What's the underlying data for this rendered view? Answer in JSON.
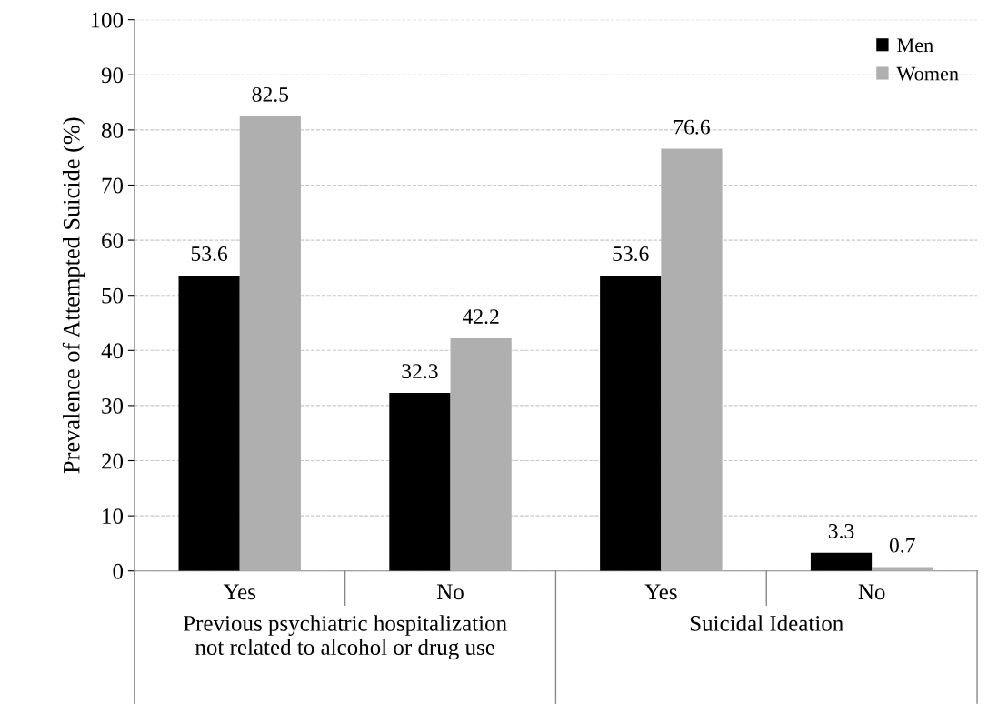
{
  "chart_data": {
    "type": "bar",
    "ylabel": "Prevalence of Attempted Suicide (%)",
    "categories": [
      "Yes",
      "No",
      "Yes",
      "No"
    ],
    "series": [
      {
        "name": "Men",
        "color": "#000000",
        "values": [
          53.6,
          32.3,
          53.6,
          3.3
        ]
      },
      {
        "name": "Women",
        "color": "#afafaf",
        "values": [
          82.5,
          42.2,
          76.6,
          0.7
        ]
      }
    ],
    "annotations": [
      "Previous psychiatric hospitalization\nnot related to alcohol or drug use",
      "Suicidal Ideation"
    ],
    "ylim": [
      0,
      100
    ],
    "yticks": [
      0,
      10,
      20,
      30,
      40,
      50,
      60,
      70,
      80,
      90,
      100
    ],
    "grid": "y",
    "legend": "top right",
    "data_labels": true
  }
}
